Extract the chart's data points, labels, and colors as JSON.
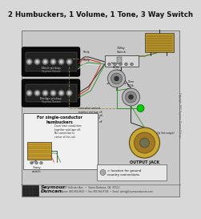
{
  "title": "2 Humbuckers, 1 Volume, 1 Tone, 3 Way Switch",
  "title_fontsize": 6.2,
  "bg_color": "#d8d8d8",
  "seymour_text1": "Seymour",
  "seymour_text2": "Duncan.",
  "footer_line1": "5427 Hollister Ave.  •  Santa Barbara, CA  93111",
  "footer_line2": "Phone: 800.966.9610  •  Fax: 805.964.9749  •  Email: wiring@seymounduncan.com",
  "output_jack_label": "OUTPUT JACK",
  "single_conductor_text": "For single-conductor\nhumbuckers",
  "ground_text": "= location for ground\ncountry connections",
  "copyright_text": "Copyright 2002 Seymour Duncan Pickups",
  "wire_green": "#228B22",
  "wire_red": "#cc2200",
  "wire_black": "#111111",
  "wire_white": "#eeeeee",
  "wire_bare": "#888844",
  "pickup_black": "#111111",
  "pickup_chrome": "#aaaaaa",
  "pickup_pole": "#777777",
  "cap_gold": "#b8952a",
  "pot_silver": "#b0b0b0",
  "jack_gold": "#c8a832",
  "bg_main": "#cccccc",
  "inset_bg": "#e8e8e8"
}
